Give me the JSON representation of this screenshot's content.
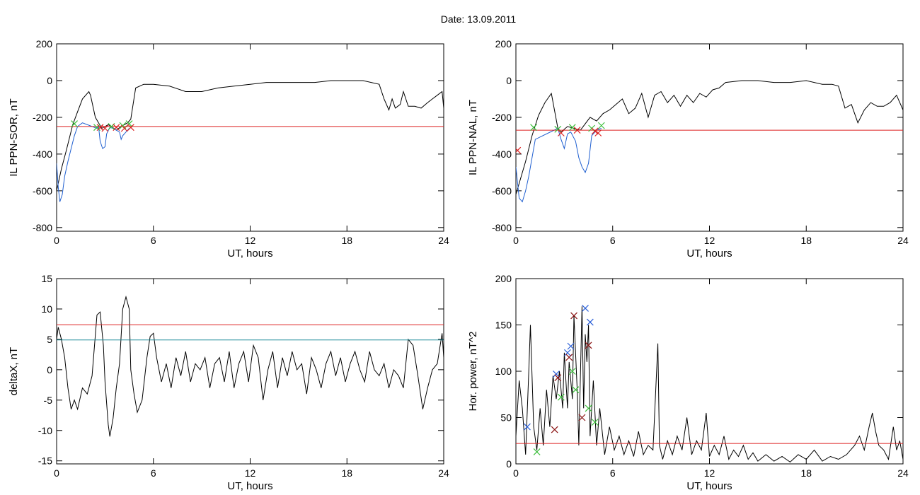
{
  "title": "Date:  13.09.2011",
  "colors": {
    "black": "#000000",
    "red": "#dd2222",
    "blue": "#1f5fd0",
    "cyan": "#1a8a98",
    "green": "#3cbf3c",
    "darkred": "#8a1010",
    "crossblue": "#2a5fd8"
  },
  "chart_data": [
    {
      "type": "line",
      "panel": "top-left",
      "xlabel": "UT, hours",
      "ylabel": "IL PPN-SOR, nT",
      "xlim": [
        0,
        24
      ],
      "ylim": [
        -820,
        200
      ],
      "xticks": [
        0,
        6,
        12,
        18,
        24
      ],
      "yticks": [
        -800,
        -600,
        -400,
        -200,
        0,
        200
      ],
      "threshold": -250,
      "series": [
        {
          "style": "black",
          "x": [
            0,
            0.3,
            0.6,
            1.0,
            1.3,
            1.6,
            2.0,
            2.1,
            2.4,
            2.6,
            2.8,
            3.0,
            3.2,
            3.4,
            3.7,
            4.0,
            4.2,
            4.4,
            4.6,
            4.9,
            5.4,
            6.0,
            7.0,
            8.0,
            9.0,
            10.0,
            11.0,
            12.0,
            13.0,
            14.0,
            15.0,
            16.0,
            17.0,
            18.0,
            19.0,
            20.0,
            20.3,
            20.6,
            20.8,
            21.0,
            21.3,
            21.5,
            21.8,
            22.2,
            22.6,
            23.0,
            23.3,
            23.6,
            23.9,
            24.0
          ],
          "y": [
            -600,
            -480,
            -380,
            -240,
            -170,
            -100,
            -60,
            -80,
            -200,
            -230,
            -260,
            -250,
            -240,
            -250,
            -270,
            -250,
            -240,
            -230,
            -210,
            -40,
            -20,
            -20,
            -30,
            -60,
            -60,
            -40,
            -30,
            -20,
            -10,
            -10,
            -10,
            -10,
            0,
            0,
            0,
            -20,
            -100,
            -160,
            -100,
            -150,
            -130,
            -60,
            -140,
            -140,
            -150,
            -120,
            -100,
            -80,
            -60,
            -150
          ]
        },
        {
          "style": "blue",
          "x": [
            0,
            0.1,
            0.2,
            0.35,
            0.5,
            0.7,
            0.9,
            1.1,
            1.3,
            1.6,
            2.5,
            2.6,
            2.7,
            2.85,
            3.0,
            3.1,
            3.3,
            3.5,
            3.7,
            3.9,
            4.0,
            4.1,
            4.3,
            4.5
          ],
          "y": [
            -450,
            -580,
            -660,
            -620,
            -520,
            -440,
            -370,
            -300,
            -250,
            -230,
            -260,
            -250,
            -330,
            -370,
            -360,
            -290,
            -255,
            -260,
            -270,
            -280,
            -320,
            -300,
            -280,
            -260
          ]
        }
      ],
      "markers": [
        {
          "style": "green",
          "x": [
            1.1,
            2.5,
            3.4,
            4.1,
            4.5
          ],
          "y": [
            -235,
            -255,
            -250,
            -245,
            -235
          ]
        },
        {
          "style": "red",
          "x": [
            2.7,
            3.0,
            3.7,
            4.2,
            4.6
          ],
          "y": [
            -255,
            -260,
            -255,
            -260,
            -255
          ]
        }
      ]
    },
    {
      "type": "line",
      "panel": "top-right",
      "xlabel": "UT, hours",
      "ylabel": "IL PPN-NAL, nT",
      "xlim": [
        0,
        24
      ],
      "ylim": [
        -820,
        200
      ],
      "xticks": [
        0,
        6,
        12,
        18,
        24
      ],
      "yticks": [
        -800,
        -600,
        -400,
        -200,
        0,
        200
      ],
      "threshold": -270,
      "series": [
        {
          "style": "black",
          "x": [
            0,
            0.6,
            1.0,
            1.4,
            1.8,
            2.2,
            2.6,
            2.8,
            3.2,
            3.6,
            4.0,
            4.6,
            5.0,
            5.4,
            5.8,
            6.2,
            6.6,
            7.0,
            7.4,
            7.8,
            8.2,
            8.6,
            9.0,
            9.4,
            9.8,
            10.2,
            10.6,
            11.0,
            11.4,
            11.8,
            12.2,
            12.6,
            13.0,
            14.0,
            15.0,
            16.0,
            17.0,
            18.0,
            19.0,
            19.6,
            20.0,
            20.4,
            20.8,
            21.2,
            21.6,
            22.0,
            22.4,
            22.8,
            23.2,
            23.6,
            24.0
          ],
          "y": [
            -620,
            -440,
            -300,
            -190,
            -120,
            -70,
            -260,
            -280,
            -250,
            -260,
            -270,
            -200,
            -220,
            -180,
            -160,
            -130,
            -100,
            -180,
            -150,
            -70,
            -200,
            -80,
            -60,
            -120,
            -80,
            -140,
            -80,
            -120,
            -70,
            -90,
            -50,
            -40,
            -10,
            0,
            0,
            -10,
            -10,
            0,
            -20,
            -20,
            -30,
            -150,
            -130,
            -230,
            -160,
            -120,
            -140,
            -140,
            -120,
            -80,
            -160
          ]
        },
        {
          "style": "blue",
          "x": [
            0,
            0.2,
            0.4,
            0.6,
            0.8,
            1.0,
            1.2,
            2.6,
            2.8,
            3.0,
            3.2,
            3.4,
            3.7,
            3.9,
            4.1,
            4.3,
            4.5,
            4.7,
            5.0,
            5.3
          ],
          "y": [
            -470,
            -640,
            -660,
            -600,
            -520,
            -420,
            -320,
            -260,
            -320,
            -370,
            -290,
            -280,
            -330,
            -420,
            -470,
            -500,
            -450,
            -300,
            -270,
            -260
          ]
        }
      ],
      "markers": [
        {
          "style": "green",
          "x": [
            1.1,
            2.6,
            3.5,
            4.7,
            5.3
          ],
          "y": [
            -255,
            -265,
            -255,
            -260,
            -245
          ]
        },
        {
          "style": "red",
          "x": [
            0.1,
            2.8,
            3.8,
            4.9,
            5.1
          ],
          "y": [
            -380,
            -285,
            -270,
            -275,
            -285
          ]
        }
      ]
    },
    {
      "type": "line",
      "panel": "bottom-left",
      "xlabel": "UT, hours",
      "ylabel": "deltaX, nT",
      "xlim": [
        0,
        24
      ],
      "ylim": [
        -15.5,
        15
      ],
      "xticks": [
        0,
        6,
        12,
        18,
        24
      ],
      "yticks": [
        -15,
        -10,
        -5,
        0,
        5,
        10,
        15
      ],
      "thresholds": [
        {
          "style": "red",
          "value": 7.4
        },
        {
          "style": "cyan",
          "value": 4.9
        }
      ],
      "series": [
        {
          "style": "black",
          "x": [
            0,
            0.1,
            0.3,
            0.5,
            0.7,
            0.9,
            1.1,
            1.3,
            1.6,
            1.9,
            2.2,
            2.5,
            2.7,
            2.9,
            3.0,
            3.2,
            3.3,
            3.5,
            3.7,
            3.9,
            4.1,
            4.3,
            4.5,
            4.6,
            4.8,
            5.0,
            5.3,
            5.6,
            5.8,
            6.0,
            6.2,
            6.5,
            6.8,
            7.1,
            7.4,
            7.7,
            8.0,
            8.3,
            8.6,
            8.9,
            9.2,
            9.5,
            9.8,
            10.1,
            10.4,
            10.7,
            11.0,
            11.3,
            11.6,
            11.9,
            12.2,
            12.5,
            12.8,
            13.1,
            13.4,
            13.7,
            14.0,
            14.3,
            14.6,
            14.9,
            15.2,
            15.5,
            15.8,
            16.1,
            16.4,
            16.7,
            17.0,
            17.3,
            17.6,
            17.9,
            18.2,
            18.5,
            18.8,
            19.1,
            19.4,
            19.7,
            20.0,
            20.3,
            20.6,
            20.9,
            21.2,
            21.5,
            21.8,
            22.1,
            22.4,
            22.7,
            23.0,
            23.3,
            23.6,
            23.9,
            24.0
          ],
          "y": [
            5,
            7,
            5,
            2,
            -3,
            -6.5,
            -5,
            -6.5,
            -3,
            -4,
            -1,
            9,
            9.5,
            4,
            -2,
            -9,
            -11,
            -8,
            -3,
            1,
            10,
            12,
            10,
            0,
            -4,
            -7,
            -5,
            2,
            5.5,
            6,
            2,
            -2,
            1,
            -3,
            2,
            -1,
            3,
            -2,
            1,
            0,
            2,
            -3,
            1,
            2,
            -2,
            3,
            -3,
            1,
            3,
            -2,
            4,
            2,
            -5,
            0,
            3,
            -3,
            2,
            -1,
            3,
            0,
            1,
            -4,
            2,
            0,
            -3,
            1,
            3,
            -1,
            2,
            -2,
            1,
            3,
            0,
            -2,
            3,
            0,
            -1,
            1,
            -3,
            0,
            -1,
            -3,
            5,
            4,
            -1,
            -6.5,
            -3,
            0,
            1,
            6,
            2
          ]
        }
      ]
    },
    {
      "type": "line",
      "panel": "bottom-right",
      "xlabel": "UT, hours",
      "ylabel": "Hor. power, nT^2",
      "xlim": [
        0,
        24
      ],
      "ylim": [
        0,
        200
      ],
      "xticks": [
        0,
        6,
        12,
        18,
        24
      ],
      "yticks": [
        0,
        50,
        100,
        150,
        200
      ],
      "threshold": 22,
      "series": [
        {
          "style": "black",
          "x": [
            0,
            0.2,
            0.4,
            0.6,
            0.8,
            0.9,
            1.1,
            1.3,
            1.5,
            1.7,
            1.9,
            2.1,
            2.3,
            2.5,
            2.7,
            2.9,
            3.0,
            3.2,
            3.3,
            3.5,
            3.6,
            3.8,
            3.9,
            4.1,
            4.2,
            4.3,
            4.4,
            4.5,
            4.6,
            4.8,
            5.0,
            5.2,
            5.5,
            5.8,
            6.1,
            6.4,
            6.7,
            7.0,
            7.3,
            7.6,
            7.9,
            8.2,
            8.5,
            8.8,
            8.9,
            9.1,
            9.4,
            9.7,
            10.0,
            10.3,
            10.6,
            10.9,
            11.2,
            11.5,
            11.8,
            12.0,
            12.3,
            12.6,
            12.9,
            13.2,
            13.5,
            13.8,
            14.1,
            14.4,
            14.7,
            15.0,
            15.5,
            16.0,
            16.5,
            17.0,
            17.5,
            18.0,
            18.5,
            19.0,
            19.5,
            20.0,
            20.5,
            21.0,
            21.3,
            21.6,
            21.9,
            22.1,
            22.3,
            22.5,
            22.8,
            23.1,
            23.4,
            23.6,
            23.8,
            24.0
          ],
          "y": [
            30,
            90,
            60,
            10,
            100,
            150,
            40,
            15,
            60,
            20,
            80,
            40,
            95,
            70,
            100,
            60,
            120,
            60,
            110,
            70,
            160,
            80,
            20,
            170,
            60,
            140,
            110,
            150,
            30,
            90,
            20,
            60,
            10,
            40,
            15,
            30,
            10,
            25,
            8,
            35,
            10,
            20,
            15,
            130,
            20,
            5,
            25,
            10,
            30,
            15,
            50,
            10,
            25,
            15,
            55,
            8,
            20,
            10,
            30,
            5,
            15,
            8,
            20,
            5,
            12,
            3,
            10,
            3,
            8,
            2,
            10,
            5,
            15,
            3,
            8,
            5,
            10,
            20,
            30,
            15,
            40,
            55,
            35,
            20,
            15,
            5,
            40,
            15,
            25,
            5
          ]
        }
      ],
      "markers": [
        {
          "style": "crossblue",
          "x": [
            0.7,
            2.5,
            3.2,
            3.4,
            4.3,
            4.6
          ],
          "y": [
            40,
            97,
            120,
            127,
            168,
            153
          ]
        },
        {
          "style": "darkred",
          "x": [
            2.4,
            2.6,
            3.3,
            3.6,
            4.1,
            4.5
          ],
          "y": [
            37,
            93,
            115,
            160,
            50,
            128
          ]
        },
        {
          "style": "green",
          "x": [
            1.3,
            2.8,
            3.5,
            3.7,
            4.5,
            4.9
          ],
          "y": [
            13,
            72,
            100,
            80,
            60,
            45
          ]
        }
      ]
    }
  ]
}
